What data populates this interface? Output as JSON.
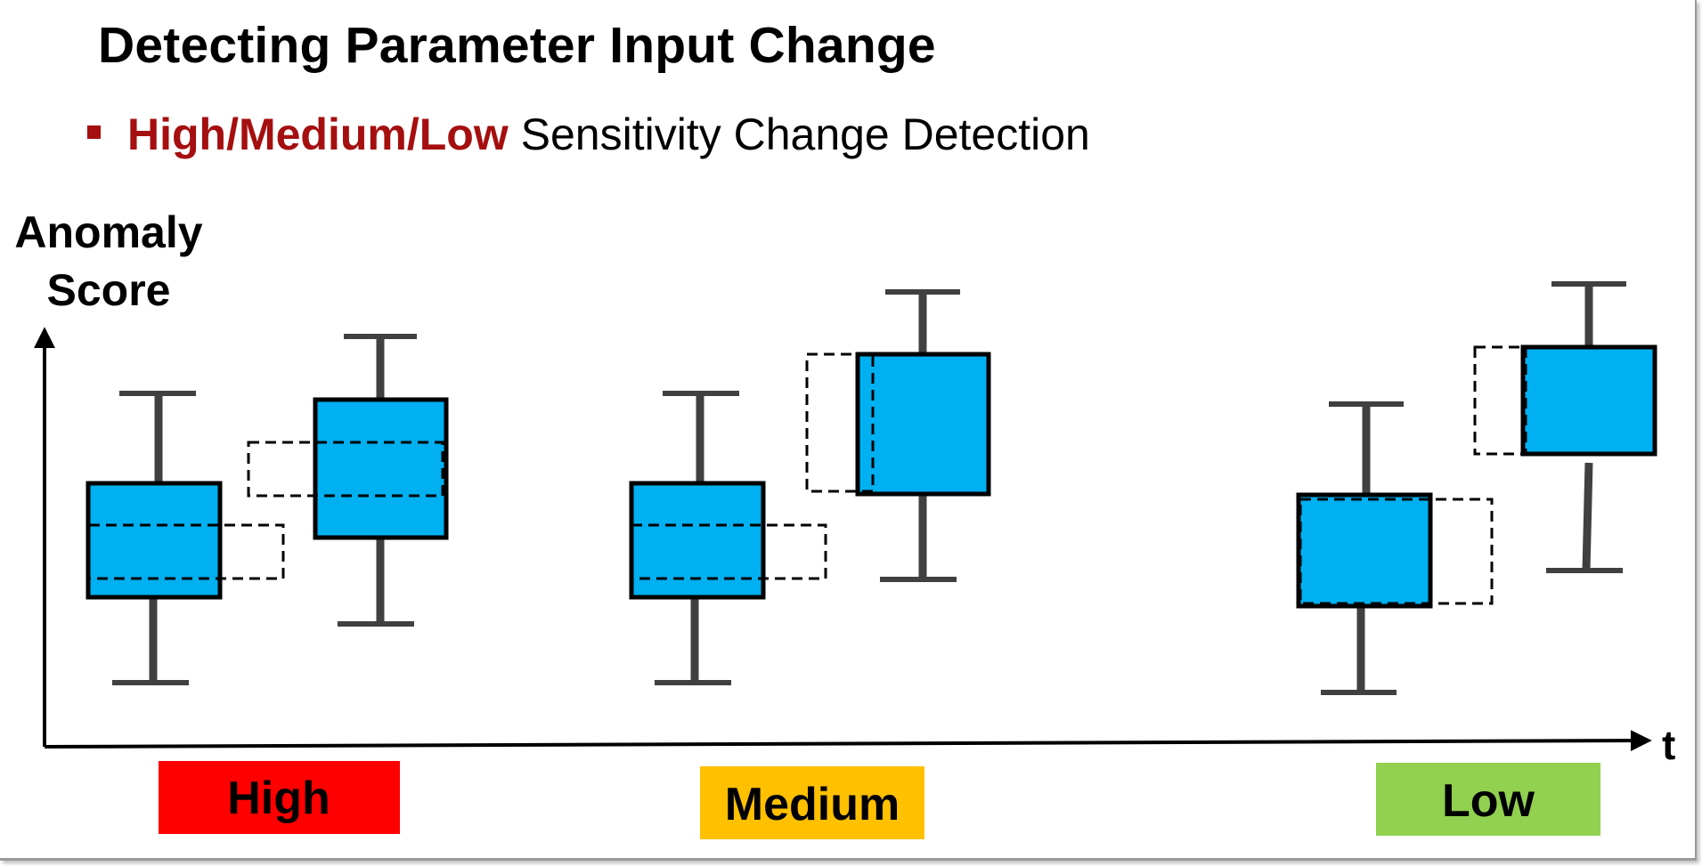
{
  "title": "Detecting Parameter Input Change",
  "subtitle": {
    "highlight": "High/Medium/Low",
    "rest": " Sensitivity Change Detection"
  },
  "y_axis_label": [
    "Anomaly",
    "Score"
  ],
  "x_axis_label": "t",
  "levels": [
    {
      "label": "High",
      "color": "#ff0000"
    },
    {
      "label": "Medium",
      "color": "#ffc000"
    },
    {
      "label": "Low",
      "color": "#92d050"
    }
  ],
  "colors": {
    "accent": "#a50f0f",
    "box_fill": "#00b0f0",
    "whisker": "#404040",
    "axis": "#000000"
  }
}
